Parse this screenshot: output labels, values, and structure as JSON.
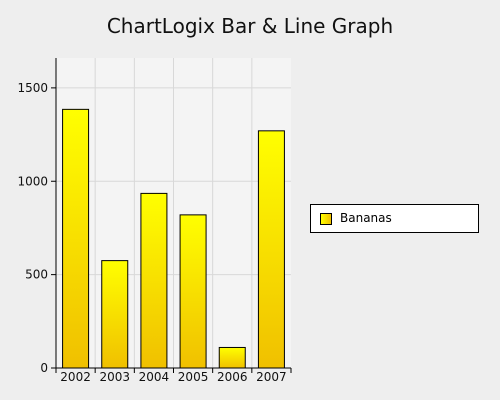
{
  "chart_data": {
    "type": "bar",
    "title": "ChartLogix Bar & Line Graph",
    "xlabel": "",
    "ylabel": "",
    "categories": [
      "2002",
      "2003",
      "2004",
      "2005",
      "2006",
      "2007"
    ],
    "series": [
      {
        "name": "Bananas",
        "values": [
          1385,
          575,
          935,
          820,
          110,
          1270
        ]
      }
    ],
    "ylim": [
      0,
      1660
    ],
    "yticks": [
      0,
      500,
      1000,
      1500
    ],
    "grid": true,
    "legend_position": "right",
    "colors": {
      "bar_top": "#ffff00",
      "bar_bottom": "#f0c000",
      "bar_border": "#000000",
      "plot_background": "#f4f4f4",
      "grid": "#d8d8d8",
      "page_background": "#eeeeee"
    }
  }
}
